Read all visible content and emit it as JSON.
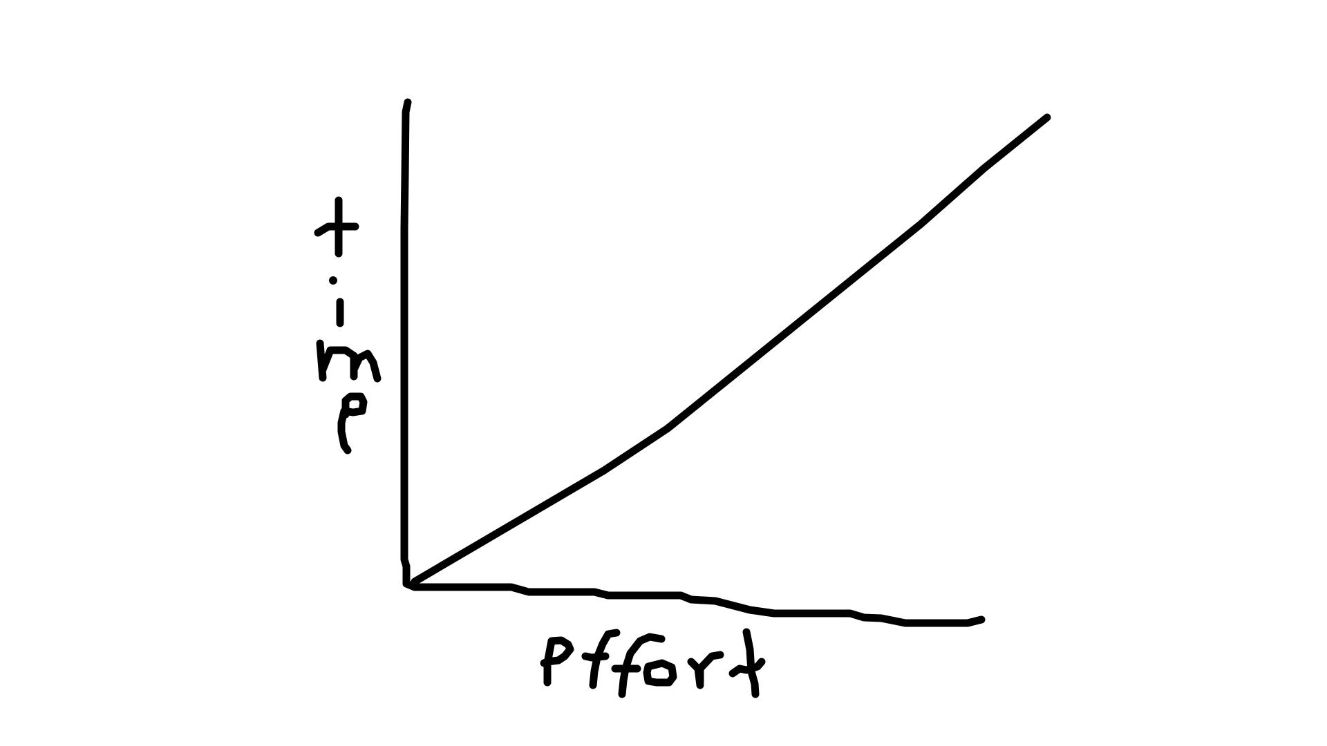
{
  "chart_data": {
    "type": "line",
    "title": "",
    "xlabel": "effort",
    "ylabel": "time",
    "grid": false,
    "legend": "none",
    "xlim": [
      0,
      10
    ],
    "ylim": [
      0,
      10
    ],
    "series": [
      {
        "x": [
          0,
          1,
          2,
          3,
          4,
          5,
          6,
          7,
          8,
          9,
          10
        ],
        "y": [
          0,
          0.8,
          1.6,
          2.4,
          3.3,
          4.4,
          5.5,
          6.6,
          7.7,
          8.9,
          10
        ]
      }
    ]
  },
  "colors": {
    "ink": "#000000",
    "background": "#ffffff"
  }
}
